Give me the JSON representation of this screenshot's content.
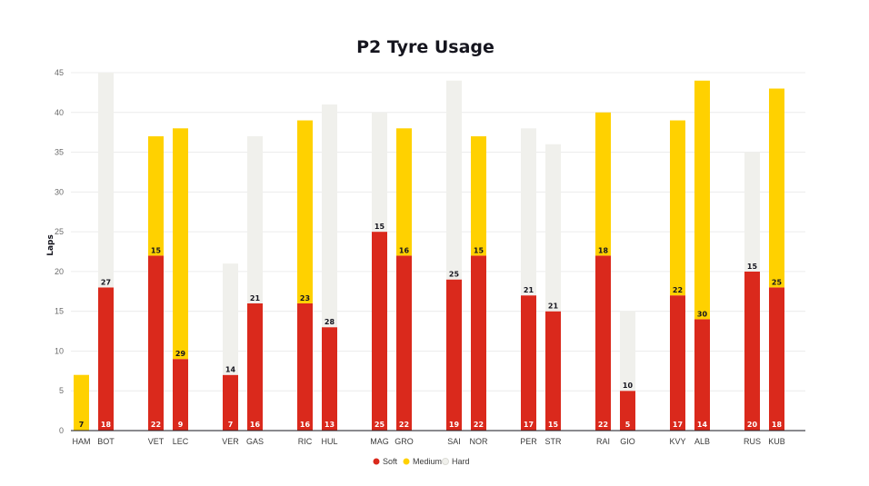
{
  "chart_data": {
    "type": "bar",
    "stacked": true,
    "title": "P2 Tyre Usage",
    "ylabel": "Laps",
    "ylim": [
      0,
      45
    ],
    "yticks": [
      0,
      5,
      10,
      15,
      20,
      25,
      30,
      35,
      40,
      45
    ],
    "grid": true,
    "legend_position": "bottom-center",
    "categories": [
      "HAM",
      "BOT",
      "VET",
      "LEC",
      "VER",
      "GAS",
      "RIC",
      "HUL",
      "MAG",
      "GRO",
      "SAI",
      "NOR",
      "PER",
      "STR",
      "RAI",
      "GIO",
      "KVY",
      "ALB",
      "RUS",
      "KUB"
    ],
    "series": [
      {
        "name": "Soft",
        "color": "#da291c",
        "values": [
          0,
          18,
          22,
          9,
          7,
          16,
          16,
          13,
          25,
          22,
          19,
          22,
          17,
          15,
          22,
          5,
          17,
          14,
          20,
          18
        ],
        "labels": [
          "",
          "18",
          "22",
          "9",
          "7",
          "16",
          "16",
          "13",
          "25",
          "22",
          "19",
          "22",
          "17",
          "15",
          "22",
          "5",
          "17",
          "14",
          "20",
          "18"
        ]
      },
      {
        "name": "Medium",
        "color": "#ffd100",
        "values": [
          7,
          0,
          15,
          29,
          0,
          0,
          23,
          0,
          0,
          16,
          0,
          15,
          0,
          0,
          18,
          0,
          22,
          30,
          0,
          25
        ],
        "labels": [
          "7",
          "",
          "15",
          "29",
          "",
          "",
          "23",
          "",
          "",
          "16",
          "",
          "15",
          "",
          "",
          "18",
          "",
          "22",
          "30",
          "",
          "25"
        ]
      },
      {
        "name": "Hard",
        "color": "#f0f0ec",
        "values": [
          0,
          27,
          0,
          0,
          14,
          21,
          0,
          28,
          15,
          0,
          25,
          0,
          21,
          21,
          0,
          10,
          0,
          0,
          15,
          0
        ],
        "labels": [
          "",
          "27",
          "",
          "",
          "14",
          "21",
          "",
          "28",
          "15",
          "",
          "25",
          "",
          "21",
          "21",
          "",
          "10",
          "",
          "",
          "15",
          ""
        ]
      }
    ]
  }
}
